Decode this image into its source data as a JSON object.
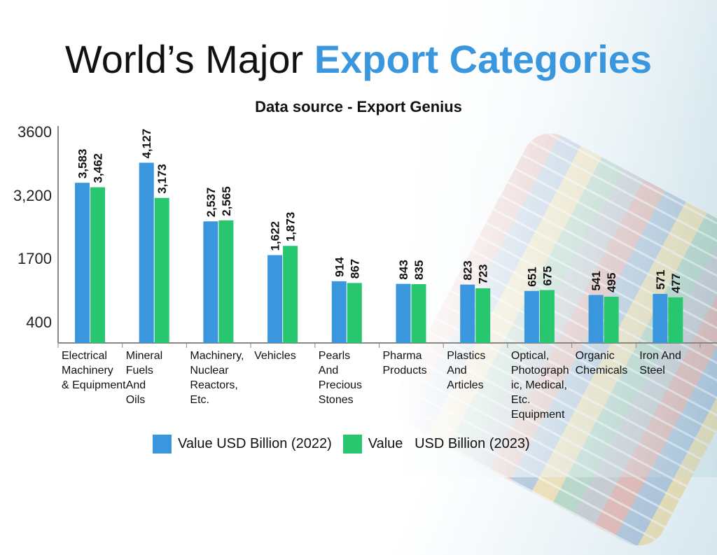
{
  "header": {
    "title_part1": "World’s Major",
    "title_part2": "Export Categories",
    "subtitle": "Data source - Export Genius"
  },
  "colors": {
    "series_2022": "#3a97dd",
    "series_2023": "#28c76f",
    "accent": "#3a97dd"
  },
  "chart_data": {
    "type": "bar",
    "title": "World’s Major Export Categories",
    "subtitle": "Data source - Export Genius",
    "categories": [
      "Electrical Machinery & Equipment",
      "Mineral Fuels And Oils",
      "Machinery, Nuclear Reactors, Etc.",
      "Vehicles",
      "Pearls And Precious Stones",
      "Pharma Products",
      "Plastics And Articles",
      "Optical, Photographic, Medical, Etc. Equipment",
      "Organic Chemicals",
      "Iron And Steel"
    ],
    "category_lines": [
      [
        "Electrical",
        "Machinery",
        "& Equipment"
      ],
      [
        "Mineral",
        "Fuels",
        "And",
        "Oils"
      ],
      [
        "Machinery,",
        "Nuclear",
        "Reactors,",
        "Etc."
      ],
      [
        "Vehicles"
      ],
      [
        "Pearls",
        "And",
        "Precious",
        "Stones"
      ],
      [
        "Pharma",
        "Products"
      ],
      [
        "Plastics",
        "And",
        "Articles"
      ],
      [
        "Optical,",
        "Photograph",
        "ic, Medical,",
        "Etc.",
        "Equipment"
      ],
      [
        "Organic",
        "Chemicals"
      ],
      [
        "Iron And",
        "Steel"
      ]
    ],
    "series": [
      {
        "name": "Value USD Billion (2022)",
        "values": [
          3583,
          4127,
          2537,
          1622,
          914,
          843,
          823,
          651,
          541,
          571
        ],
        "labels": [
          "3,583",
          "4,127",
          "2,537",
          "1,622",
          "914",
          "843",
          "823",
          "651",
          "541",
          "571"
        ]
      },
      {
        "name": "Value   USD Billion (2023)",
        "values": [
          3462,
          3173,
          2565,
          1873,
          867,
          835,
          723,
          675,
          495,
          477
        ],
        "labels": [
          "3,462",
          "3,173",
          "2,565",
          "1,873",
          "867",
          "835",
          "723",
          "675",
          "495",
          "477"
        ]
      }
    ],
    "y_ticks": [
      "400",
      "1700",
      "3,200",
      "3600"
    ],
    "legend_position": "bottom",
    "grid": false
  }
}
